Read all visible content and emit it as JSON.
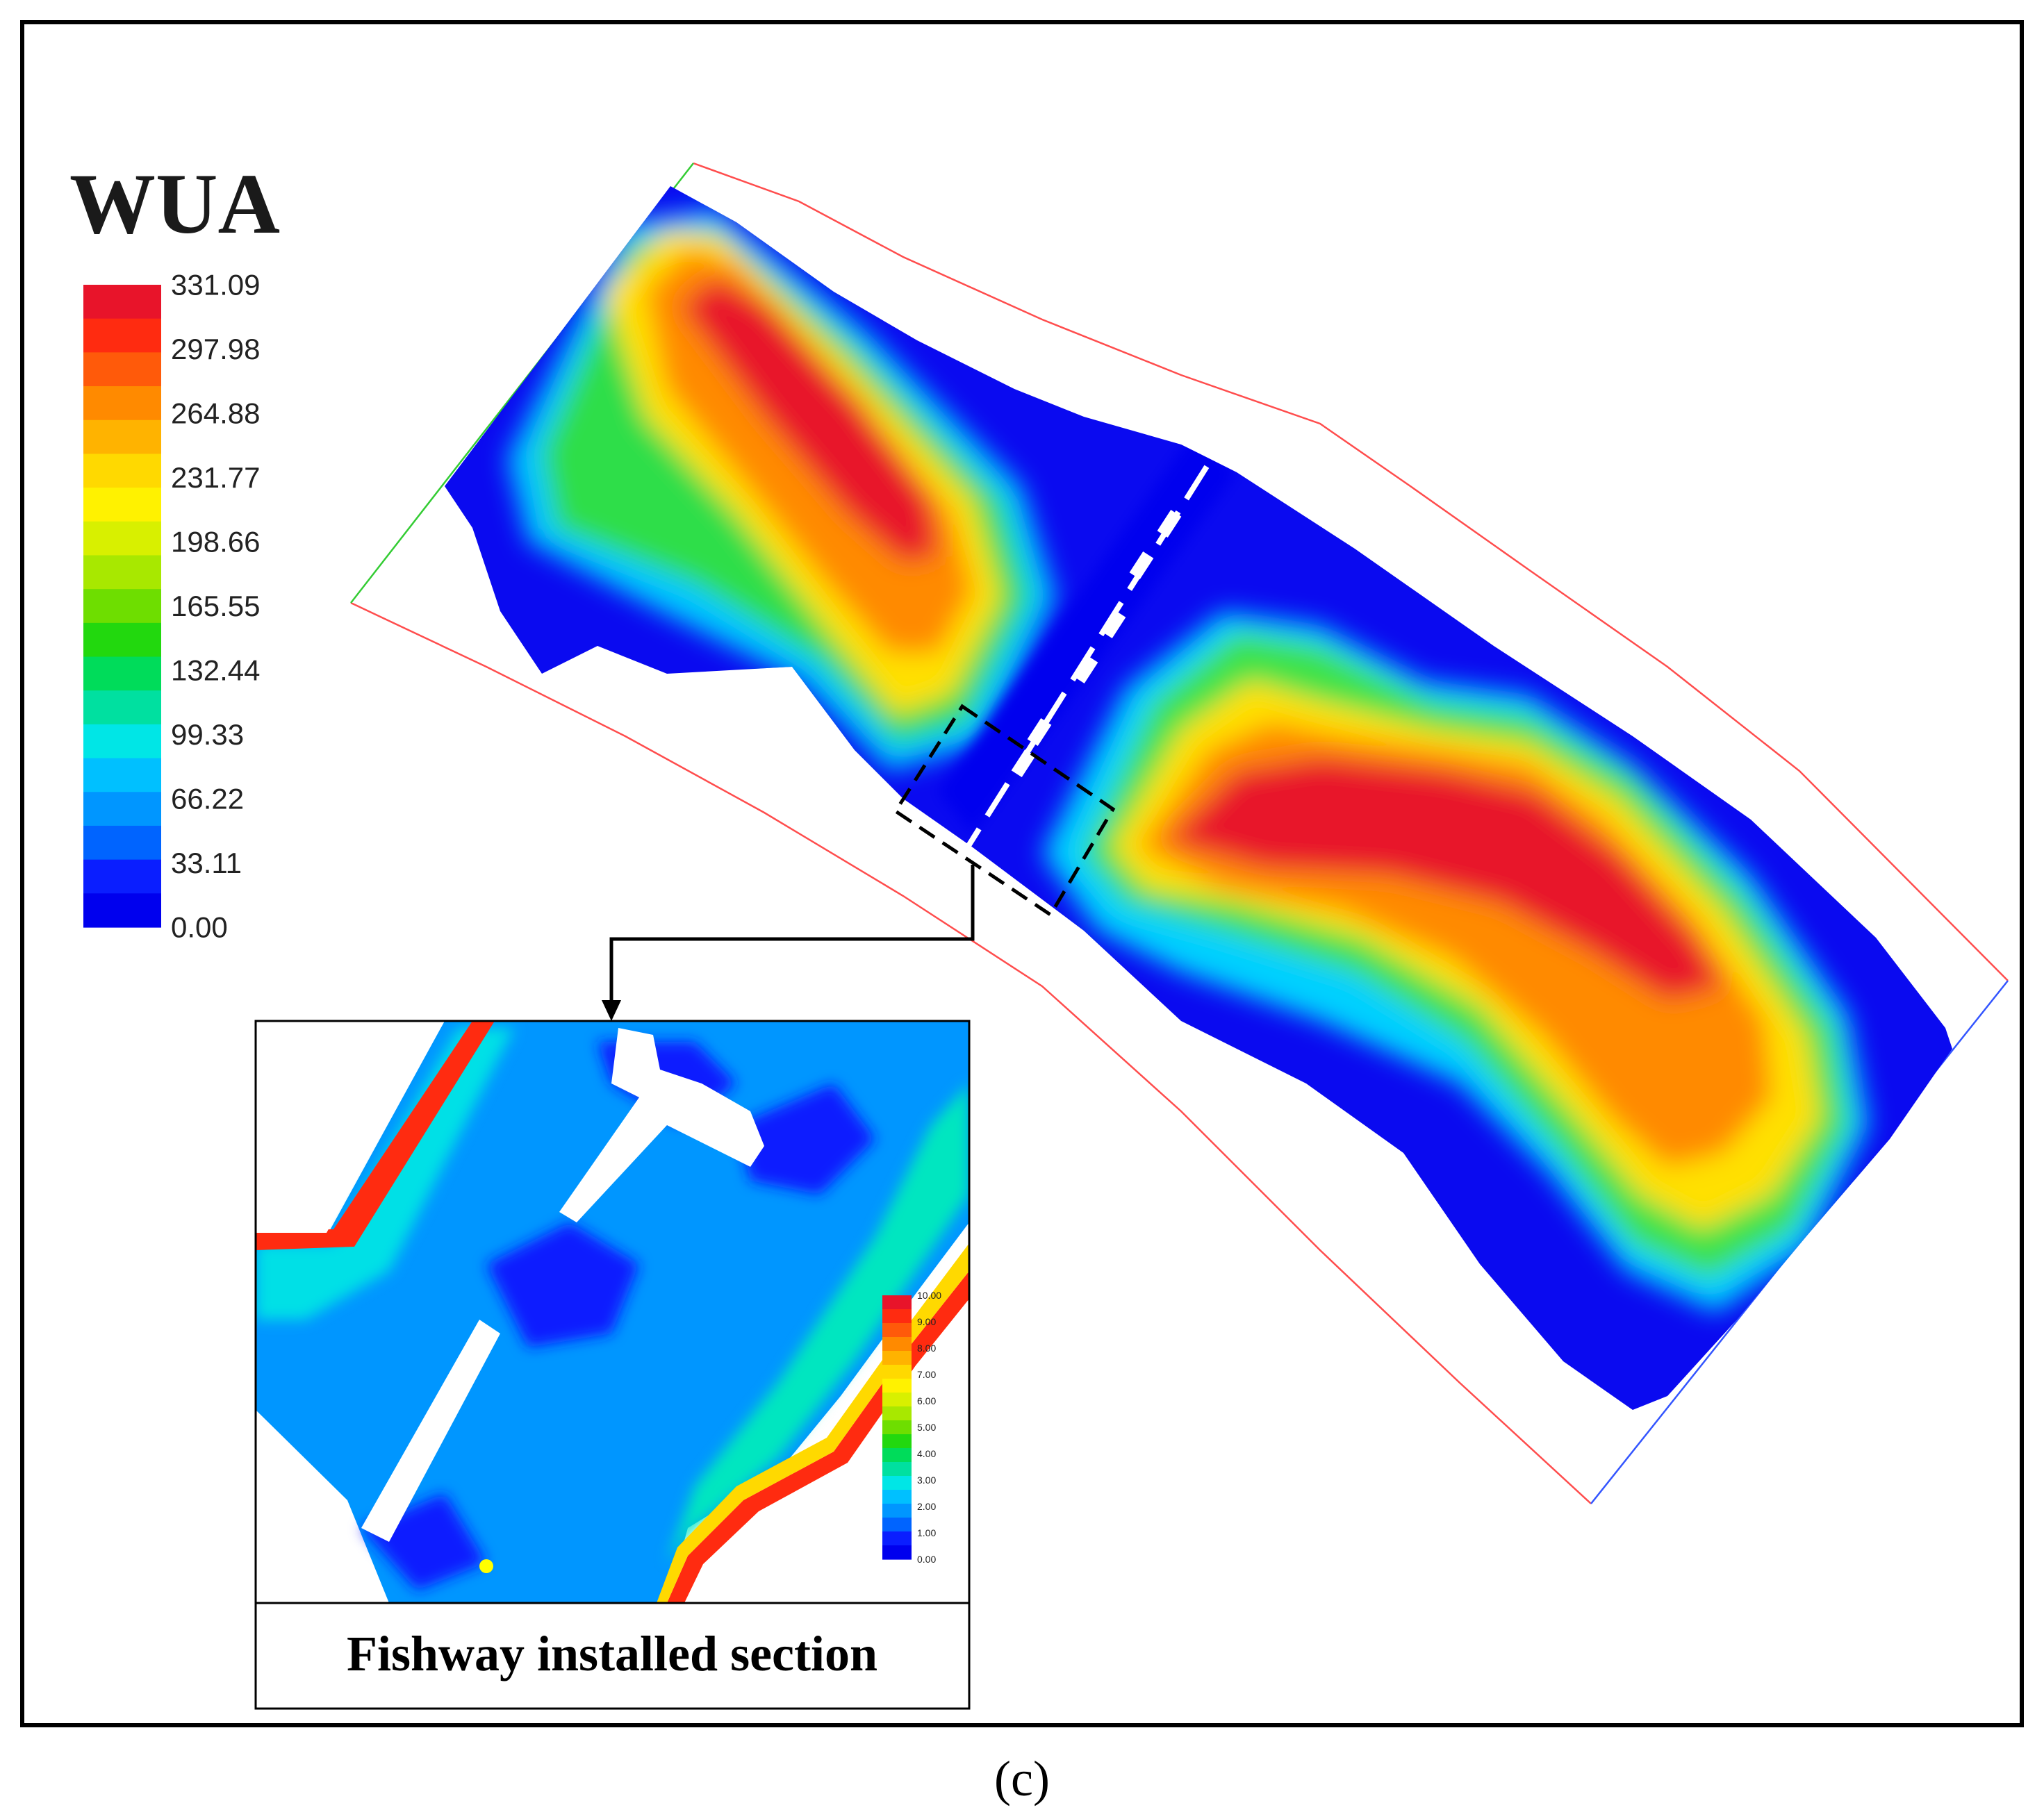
{
  "main_legend": {
    "title": "WUA",
    "ticks": [
      "331.09",
      "297.98",
      "264.88",
      "231.77",
      "198.66",
      "165.55",
      "132.44",
      "99.33",
      "66.22",
      "33.11",
      "0.00"
    ],
    "colors": [
      "#e8142a",
      "#ff2b10",
      "#ff5a0a",
      "#ff8a00",
      "#ffb300",
      "#ffd900",
      "#fff200",
      "#d8f000",
      "#a8e800",
      "#6ede00",
      "#22d80e",
      "#00dc5a",
      "#00e0a0",
      "#00e6e6",
      "#00c0ff",
      "#0096ff",
      "#0064ff",
      "#0a1eff",
      "#0000ee"
    ]
  },
  "inset_legend": {
    "ticks": [
      "10.00",
      "9.00",
      "8.00",
      "7.00",
      "6.00",
      "5.00",
      "4.00",
      "3.00",
      "2.00",
      "1.00",
      "0.00"
    ]
  },
  "inset_caption": "Fishway installed section",
  "panel_label": "(c)"
}
